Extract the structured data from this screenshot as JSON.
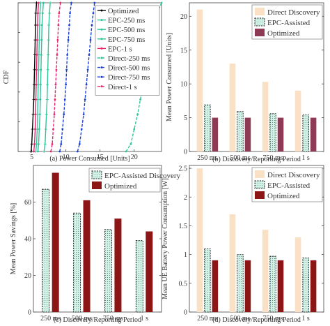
{
  "chart_data": [
    {
      "type": "line",
      "panel": "(a)",
      "caption": "(a) Power Consumed [Units]",
      "ylabel": "CDF",
      "xlim": [
        3,
        24
      ],
      "ylim": [
        0,
        1
      ],
      "xticks": [
        5,
        10,
        15,
        20
      ],
      "yticks": [
        0,
        0.2,
        0.4,
        0.6,
        0.8,
        1
      ],
      "legend_position": "right",
      "series": [
        {
          "name": "Optimized",
          "color": "#000000",
          "marker": "+",
          "dash": "",
          "x": [
            4.9,
            5.0,
            5.1,
            5.2,
            5.3,
            5.35,
            5.4,
            5.45,
            5.5,
            5.55,
            5.6,
            5.7
          ],
          "y": [
            0,
            0.05,
            0.15,
            0.25,
            0.35,
            0.45,
            0.55,
            0.65,
            0.75,
            0.85,
            0.93,
            1
          ]
        },
        {
          "name": "EPC-250 ms",
          "color": "#2fc59a",
          "marker": "+",
          "dash": "",
          "x": [
            6.8,
            6.95,
            7.05,
            7.15,
            7.25,
            7.3,
            7.35,
            7.4,
            7.45,
            7.5,
            7.6,
            7.7
          ],
          "y": [
            0,
            0.05,
            0.15,
            0.25,
            0.35,
            0.45,
            0.55,
            0.65,
            0.75,
            0.85,
            0.93,
            1
          ]
        },
        {
          "name": "EPC-500 ms",
          "color": "#2fc59a",
          "marker": "o",
          "dash": "",
          "x": [
            5.9,
            6.0,
            6.1,
            6.2,
            6.25,
            6.3,
            6.35,
            6.4,
            6.45,
            6.5,
            6.6,
            6.7
          ],
          "y": [
            0,
            0.05,
            0.15,
            0.25,
            0.35,
            0.45,
            0.55,
            0.65,
            0.75,
            0.85,
            0.93,
            1
          ]
        },
        {
          "name": "EPC-750 ms",
          "color": "#2fc59a",
          "marker": "+",
          "dash": "",
          "x": [
            5.6,
            5.7,
            5.8,
            5.85,
            5.9,
            5.95,
            6.0,
            6.05,
            6.1,
            6.15,
            6.2,
            6.3
          ],
          "y": [
            0,
            0.05,
            0.15,
            0.25,
            0.35,
            0.45,
            0.55,
            0.65,
            0.75,
            0.85,
            0.93,
            1
          ]
        },
        {
          "name": "EPC-1 s",
          "color": "#e8266e",
          "marker": "o",
          "dash": "",
          "x": [
            5.3,
            5.4,
            5.5,
            5.55,
            5.6,
            5.65,
            5.7,
            5.75,
            5.8,
            5.85,
            5.9,
            6.0
          ],
          "y": [
            0,
            0.05,
            0.15,
            0.25,
            0.35,
            0.45,
            0.55,
            0.65,
            0.75,
            0.85,
            0.93,
            1
          ]
        },
        {
          "name": "Direct-250 ms",
          "color": "#2fc59a",
          "marker": "o",
          "dash": "4,2",
          "x": [
            18.8,
            19.5,
            20.0,
            20.5,
            20.9,
            21.3,
            21.7,
            22.1,
            22.5,
            22.9,
            23.4,
            24.0
          ],
          "y": [
            0,
            0.05,
            0.15,
            0.25,
            0.35,
            0.45,
            0.55,
            0.65,
            0.75,
            0.85,
            0.93,
            1
          ]
        },
        {
          "name": "Direct-500 ms",
          "color": "#1a3fd6",
          "marker": "o",
          "dash": "4,2",
          "x": [
            11.7,
            12.0,
            12.3,
            12.6,
            12.8,
            13.0,
            13.2,
            13.4,
            13.6,
            13.8,
            14.0,
            14.2
          ],
          "y": [
            0,
            0.05,
            0.15,
            0.25,
            0.35,
            0.45,
            0.55,
            0.65,
            0.75,
            0.85,
            0.93,
            1
          ]
        },
        {
          "name": "Direct-750 ms",
          "color": "#1a3fd6",
          "marker": "o",
          "dash": "4,2",
          "x": [
            9.1,
            9.3,
            9.5,
            9.7,
            9.85,
            10.0,
            10.1,
            10.2,
            10.35,
            10.5,
            10.6,
            10.8
          ],
          "y": [
            0,
            0.05,
            0.15,
            0.25,
            0.35,
            0.45,
            0.55,
            0.65,
            0.75,
            0.85,
            0.93,
            1
          ]
        },
        {
          "name": "Direct-1 s",
          "color": "#e8266e",
          "marker": "o",
          "dash": "4,2",
          "x": [
            7.8,
            8.0,
            8.15,
            8.3,
            8.4,
            8.5,
            8.6,
            8.7,
            8.8,
            8.9,
            9.0,
            9.2
          ],
          "y": [
            0,
            0.05,
            0.15,
            0.25,
            0.35,
            0.45,
            0.55,
            0.65,
            0.75,
            0.85,
            0.93,
            1
          ]
        }
      ]
    },
    {
      "type": "bar",
      "panel": "(b)",
      "caption": "(b) Discovery/Reporting Period",
      "ylabel": "Mean Power Consumed [Units]",
      "categories": [
        "250 ms",
        "500 ms",
        "750 ms",
        "1 s"
      ],
      "ylim": [
        0,
        22
      ],
      "yticks": [
        0,
        5,
        10,
        15,
        20
      ],
      "legend_position": "top-right",
      "series": [
        {
          "name": "Direct Discovery",
          "values": [
            21,
            13,
            10.3,
            9
          ],
          "color": "#fae0c4",
          "hatch": false
        },
        {
          "name": "EPC-Assisted",
          "values": [
            6.9,
            5.9,
            5.6,
            5.4
          ],
          "color": "#d3f1e6",
          "hatch": true
        },
        {
          "name": "Optimized",
          "values": [
            5,
            5,
            5,
            5
          ],
          "color": "#8e3a55",
          "hatch": false
        }
      ]
    },
    {
      "type": "bar",
      "panel": "(c)",
      "caption": "(c) Discovery/Reporting Period",
      "ylabel": "Mean Power Savings [%]",
      "categories": [
        "250 ms",
        "500 ms",
        "750 ms",
        "1 s"
      ],
      "ylim": [
        0,
        80
      ],
      "yticks": [
        0,
        20,
        40,
        60
      ],
      "legend_position": "top-right",
      "series": [
        {
          "name": "EPC-Assisted Discovery",
          "values": [
            67,
            54,
            45,
            39
          ],
          "color": "#d3f1e6",
          "hatch": true
        },
        {
          "name": "Optimized",
          "values": [
            76,
            61,
            51,
            44
          ],
          "color": "#8c1515",
          "hatch": false
        }
      ]
    },
    {
      "type": "bar",
      "panel": "(d)",
      "caption": "(d) Discovery/Reporting Period",
      "ylabel": "Mean UE Battery Power Consumption [W]",
      "categories": [
        "250 ms",
        "500 ms",
        "750 ms",
        "1 s"
      ],
      "ylim": [
        0,
        2.55
      ],
      "yticks": [
        0,
        0.5,
        1,
        1.5,
        2,
        2.5
      ],
      "legend_position": "top-right",
      "series": [
        {
          "name": "Direct Discovery",
          "values": [
            2.5,
            1.7,
            1.43,
            1.3
          ],
          "color": "#fae0c4",
          "hatch": false
        },
        {
          "name": "EPC-Assisted",
          "values": [
            1.1,
            1.0,
            0.97,
            0.94
          ],
          "color": "#d3f1e6",
          "hatch": true
        },
        {
          "name": "Optimized",
          "values": [
            0.9,
            0.9,
            0.9,
            0.9
          ],
          "color": "#8c1515",
          "hatch": false
        }
      ]
    }
  ]
}
